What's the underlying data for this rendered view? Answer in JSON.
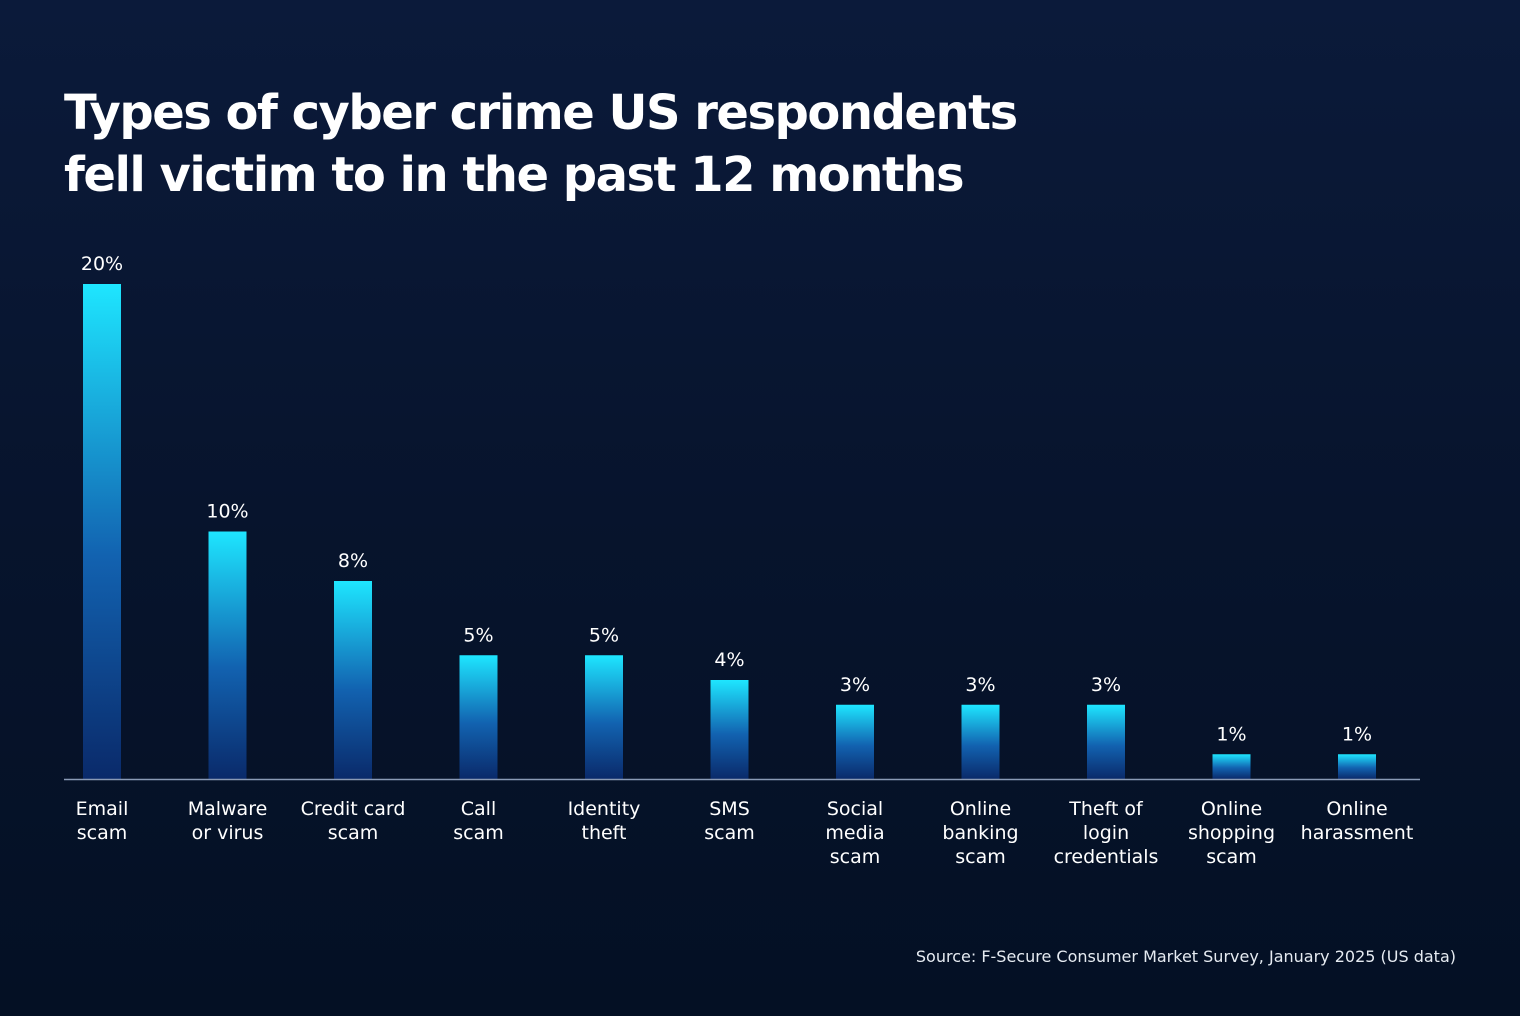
{
  "title_lines": [
    "Types of cyber crime US respondents",
    "fell victim to in the past 12 months"
  ],
  "source": "Source: F-Secure Consumer Market Survey, January 2025 (US data)",
  "colors": {
    "bar_top": "#1ee6ff",
    "bar_bottom": "#0a2a6a",
    "axis": "#8a9ab5",
    "text": "#ffffff"
  },
  "chart_data": {
    "type": "bar",
    "title": "Types of cyber crime US respondents fell victim to in the past 12 months",
    "xlabel": "",
    "ylabel": "",
    "unit": "%",
    "ylim": [
      0,
      20
    ],
    "grid": false,
    "categories": [
      [
        "Email",
        "scam"
      ],
      [
        "Malware",
        "or virus"
      ],
      [
        "Credit card",
        "scam"
      ],
      [
        "Call",
        "scam"
      ],
      [
        "Identity",
        "theft"
      ],
      [
        "SMS",
        "scam"
      ],
      [
        "Social",
        "media",
        "scam"
      ],
      [
        "Online",
        "banking",
        "scam"
      ],
      [
        "Theft of",
        "login",
        "credentials"
      ],
      [
        "Online",
        "shopping",
        "scam"
      ],
      [
        "Online",
        "harassment"
      ]
    ],
    "values": [
      20,
      10,
      8,
      5,
      5,
      4,
      3,
      3,
      3,
      1,
      1
    ],
    "labels": [
      "20%",
      "10%",
      "8%",
      "5%",
      "5%",
      "4%",
      "3%",
      "3%",
      "3%",
      "1%",
      "1%"
    ]
  }
}
